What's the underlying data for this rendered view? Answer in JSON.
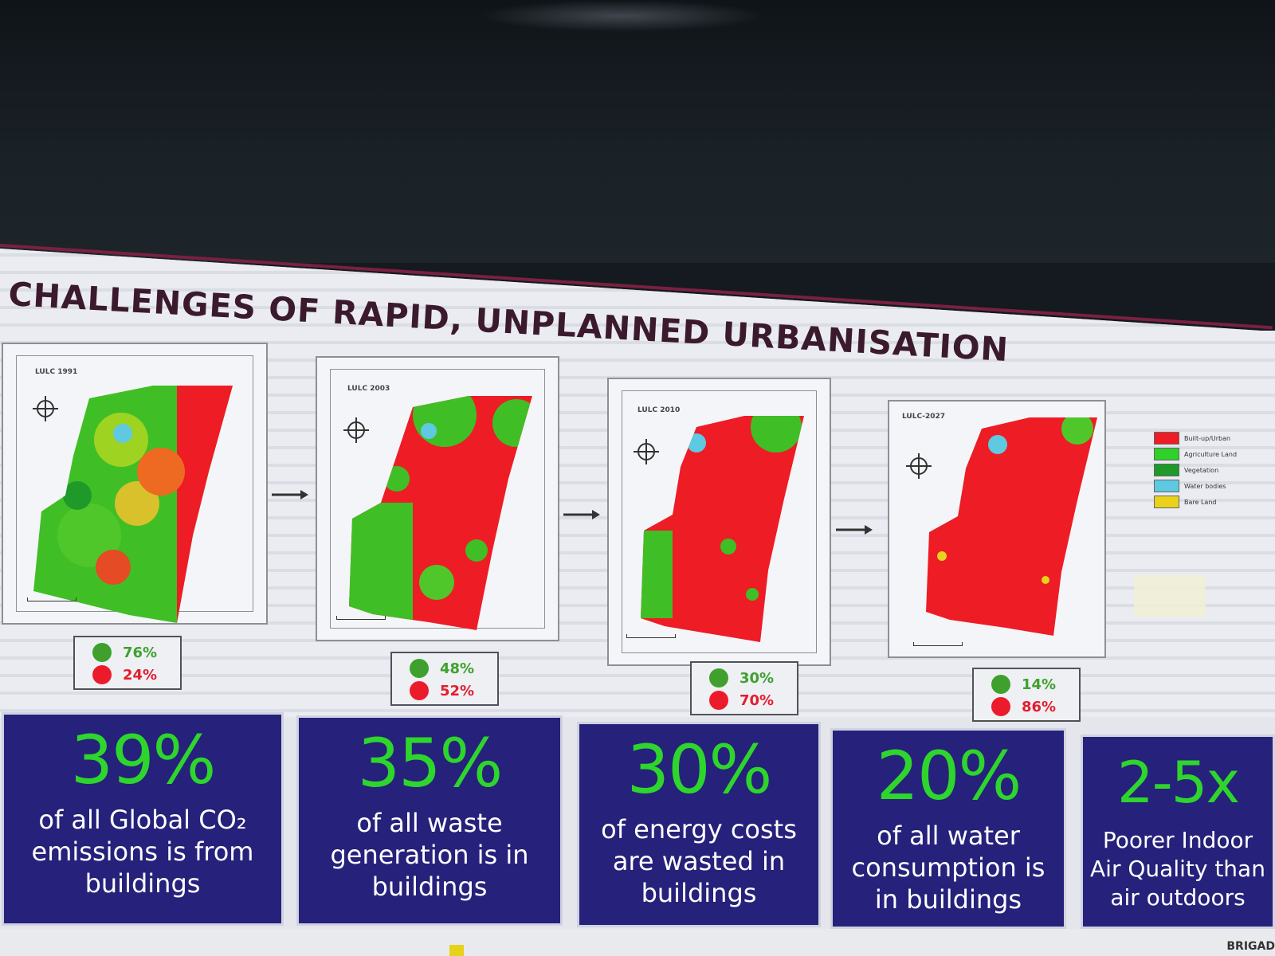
{
  "slide": {
    "title": "CHALLENGES OF RAPID, UNPLANNED URBANISATION"
  },
  "maps": [
    {
      "label": "LULC 1991",
      "green_pct": "76%",
      "red_pct": "24%",
      "green_share": 0.76
    },
    {
      "label": "LULC 2003",
      "green_pct": "48%",
      "red_pct": "52%",
      "green_share": 0.48
    },
    {
      "label": "LULC 2010",
      "green_pct": "30%",
      "red_pct": "70%",
      "green_share": 0.3
    },
    {
      "label": "LULC-2027",
      "green_pct": "14%",
      "red_pct": "86%",
      "green_share": 0.14
    }
  ],
  "legend": [
    {
      "label": "Built-up/Urban",
      "color": "#ee1c25"
    },
    {
      "label": "Agriculture Land",
      "color": "#2fd12a"
    },
    {
      "label": "Vegetation",
      "color": "#1f9a2a"
    },
    {
      "label": "Water bodies",
      "color": "#5ec9e0"
    },
    {
      "label": "Bare Land",
      "color": "#e8d21c"
    }
  ],
  "cards": [
    {
      "big": "39%",
      "desc": "of all Global CO₂ emissions is from buildings"
    },
    {
      "big": "35%",
      "desc": "of all waste generation is in buildings"
    },
    {
      "big": "30%",
      "desc": "of energy costs are wasted in buildings"
    },
    {
      "big": "20%",
      "desc": "of all water consumption is in buildings"
    },
    {
      "big": "2-5x",
      "desc": "Poorer Indoor Air Quality than air outdoors"
    }
  ],
  "footer": {
    "brand": "BRIGAD"
  },
  "colors": {
    "card_bg": "#26217a",
    "card_number": "#2ed52c",
    "urban": "#ee1c25",
    "green": "#3fa02e",
    "title": "#3b1a2e"
  }
}
